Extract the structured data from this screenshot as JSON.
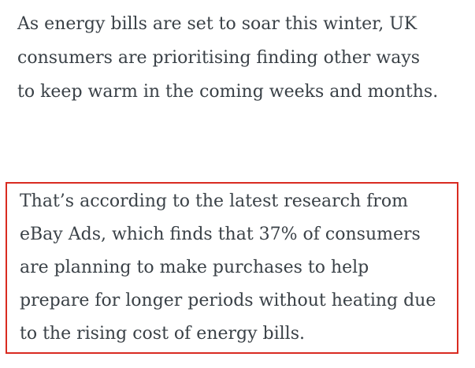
{
  "article": {
    "text_color": "#3a4147",
    "intro_paragraph": {
      "lines": [
        "As energy bills are set to soar this winter, UK",
        "consumers are prioritising finding other ways",
        "to keep warm in the coming weeks and months."
      ],
      "full_text": "As energy bills are set to soar this winter, UK consumers are prioritising finding other ways to keep warm in the coming weeks and months."
    },
    "highlighted_paragraph": {
      "lines": [
        "That’s according to the latest research from",
        "eBay Ads, which finds that 37% of consumers",
        "are planning to make purchases to help",
        "prepare for longer periods without heating due",
        "to the rising cost of energy bills."
      ],
      "full_text": "That’s according to the latest research from eBay Ads, which finds that 37% of consumers are planning to make purchases to help prepare for longer periods without heating due to the rising cost of energy bills.",
      "highlight_border_color": "#d92b21"
    }
  }
}
